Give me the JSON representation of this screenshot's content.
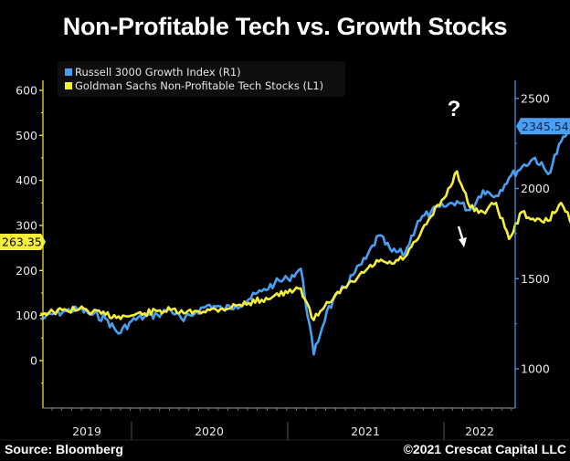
{
  "title": "Non-Profitable Tech vs. Growth Stocks",
  "footer": {
    "source": "Source: Bloomberg",
    "copyright": "©2021 Crescat Capital LLC"
  },
  "chart_data": {
    "type": "line",
    "title": "Non-Profitable Tech vs. Growth Stocks",
    "xlabel": "",
    "legend_position": "top-left",
    "grid": false,
    "x_ticks": [
      "2019",
      "2020",
      "2021",
      "2022"
    ],
    "x_range": [
      "2018-06",
      "2022-03"
    ],
    "left_axis": {
      "ticks": [
        0,
        100,
        200,
        300,
        400,
        500,
        600
      ],
      "range": [
        -100,
        620
      ],
      "color": "#f5ef3a"
    },
    "right_axis": {
      "ticks": [
        1000,
        1500,
        2000,
        2500
      ],
      "range": [
        790,
        2560
      ],
      "color": "#4a9ff0"
    },
    "series": [
      {
        "name": "Russell 3000 Growth Index (R1)",
        "axis": "right",
        "color": "#4a9ff0",
        "last_value_label": "2345.542",
        "x": [
          "2018-06",
          "2018-07",
          "2018-08",
          "2018-09",
          "2018-10",
          "2018-11",
          "2018-12",
          "2019-01",
          "2019-02",
          "2019-03",
          "2019-04",
          "2019-05",
          "2019-06",
          "2019-07",
          "2019-08",
          "2019-09",
          "2019-10",
          "2019-11",
          "2019-12",
          "2020-01",
          "2020-02",
          "2020-03",
          "2020-04",
          "2020-05",
          "2020-06",
          "2020-07",
          "2020-08",
          "2020-09",
          "2020-10",
          "2020-11",
          "2020-12",
          "2021-01",
          "2021-02",
          "2021-03",
          "2021-04",
          "2021-05",
          "2021-06",
          "2021-07",
          "2021-08",
          "2021-09",
          "2021-10",
          "2021-11",
          "2021-12"
        ],
        "values": [
          1275,
          1305,
          1320,
          1330,
          1300,
          1280,
          1195,
          1265,
          1290,
          1300,
          1330,
          1265,
          1320,
          1355,
          1330,
          1350,
          1385,
          1430,
          1475,
          1500,
          1555,
          1080,
          1320,
          1420,
          1520,
          1610,
          1740,
          1650,
          1640,
          1820,
          1870,
          1900,
          1930,
          1880,
          1990,
          1960,
          2060,
          2120,
          2170,
          2080,
          2260,
          2350,
          2345
        ]
      },
      {
        "name": "Goldman Sachs Non-Profitable Tech Stocks (L1)",
        "axis": "left",
        "color": "#f5ef3a",
        "last_value_label": "263.35",
        "x": [
          "2018-06",
          "2018-07",
          "2018-08",
          "2018-09",
          "2018-10",
          "2018-11",
          "2018-12",
          "2019-01",
          "2019-02",
          "2019-03",
          "2019-04",
          "2019-05",
          "2019-06",
          "2019-07",
          "2019-08",
          "2019-09",
          "2019-10",
          "2019-11",
          "2019-12",
          "2020-01",
          "2020-02",
          "2020-03",
          "2020-04",
          "2020-05",
          "2020-06",
          "2020-07",
          "2020-08",
          "2020-09",
          "2020-10",
          "2020-11",
          "2020-12",
          "2021-01",
          "2021-02",
          "2021-03",
          "2021-04",
          "2021-05",
          "2021-06",
          "2021-07",
          "2021-08",
          "2021-09",
          "2021-10",
          "2021-11",
          "2021-12"
        ],
        "values": [
          105,
          108,
          112,
          115,
          108,
          102,
          98,
          100,
          105,
          110,
          112,
          105,
          110,
          112,
          115,
          122,
          128,
          135,
          145,
          150,
          160,
          90,
          130,
          150,
          175,
          200,
          220,
          215,
          230,
          270,
          320,
          360,
          420,
          340,
          330,
          350,
          270,
          330,
          310,
          310,
          350,
          300,
          263
        ]
      }
    ],
    "annotations": [
      {
        "type": "text",
        "text": "?",
        "near": "Russell 3000 Growth Index end"
      },
      {
        "type": "arrow",
        "direction": "down",
        "near": "Non-Profitable Tech end"
      }
    ]
  }
}
